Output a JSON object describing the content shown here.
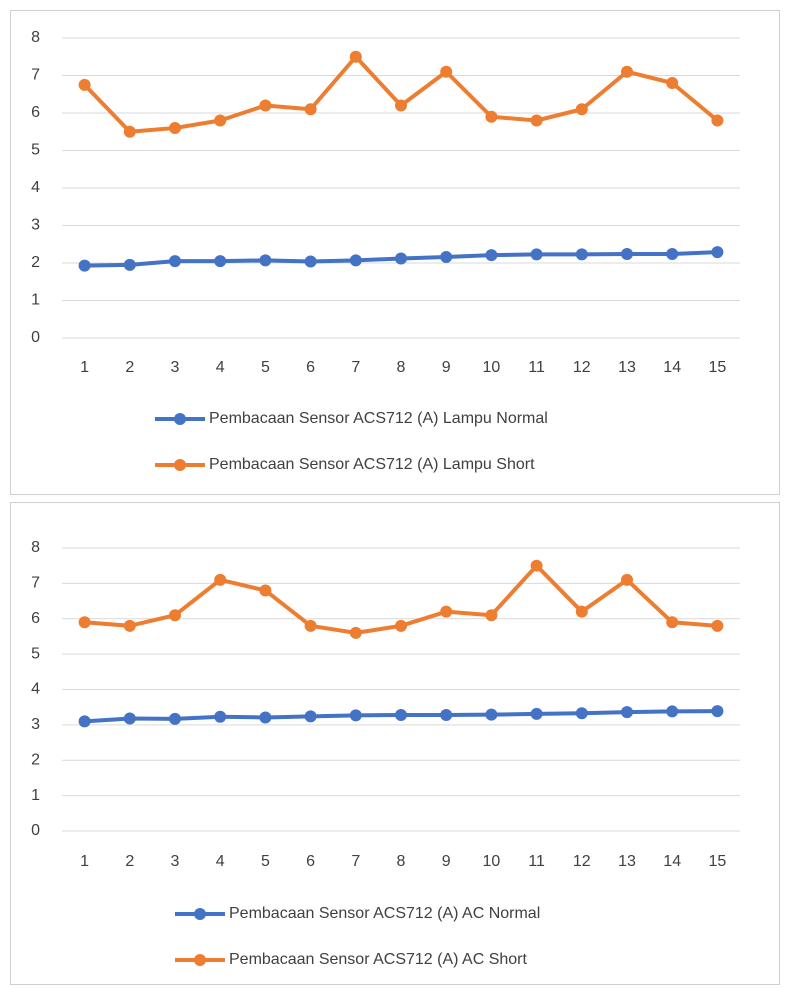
{
  "chart_data": [
    {
      "type": "line",
      "categories": [
        "1",
        "2",
        "3",
        "4",
        "5",
        "6",
        "7",
        "8",
        "9",
        "10",
        "11",
        "12",
        "13",
        "14",
        "15"
      ],
      "series": [
        {
          "name": "Pembacaan Sensor ACS712 (A) Lampu Normal",
          "color": "#4472c4",
          "values": [
            1.93,
            1.95,
            2.05,
            2.05,
            2.07,
            2.04,
            2.07,
            2.12,
            2.16,
            2.21,
            2.23,
            2.23,
            2.24,
            2.24,
            2.29
          ]
        },
        {
          "name": "Pembacaan Sensor ACS712 (A) Lampu Short",
          "color": "#ed7d31",
          "values": [
            6.75,
            5.5,
            5.6,
            5.8,
            6.2,
            6.1,
            7.5,
            6.2,
            7.1,
            5.9,
            5.8,
            6.1,
            7.1,
            6.8,
            5.8
          ]
        }
      ],
      "ylim": [
        0,
        8
      ],
      "yticks": [
        0,
        1,
        2,
        3,
        4,
        5,
        6,
        7,
        8
      ],
      "grid": true,
      "legend": "bottom"
    },
    {
      "type": "line",
      "categories": [
        "1",
        "2",
        "3",
        "4",
        "5",
        "6",
        "7",
        "8",
        "9",
        "10",
        "11",
        "12",
        "13",
        "14",
        "15"
      ],
      "series": [
        {
          "name": "Pembacaan Sensor ACS712 (A) AC Normal",
          "color": "#4472c4",
          "values": [
            3.1,
            3.18,
            3.17,
            3.23,
            3.21,
            3.24,
            3.27,
            3.28,
            3.28,
            3.29,
            3.31,
            3.33,
            3.36,
            3.38,
            3.39
          ]
        },
        {
          "name": "Pembacaan Sensor ACS712 (A) AC Short",
          "color": "#ed7d31",
          "values": [
            5.9,
            5.8,
            6.1,
            7.1,
            6.8,
            5.8,
            5.6,
            5.8,
            6.2,
            6.1,
            7.5,
            6.2,
            7.1,
            5.9,
            5.8
          ]
        }
      ],
      "ylim": [
        0,
        8
      ],
      "yticks": [
        0,
        1,
        2,
        3,
        4,
        5,
        6,
        7,
        8
      ],
      "grid": true,
      "legend": "bottom"
    }
  ]
}
